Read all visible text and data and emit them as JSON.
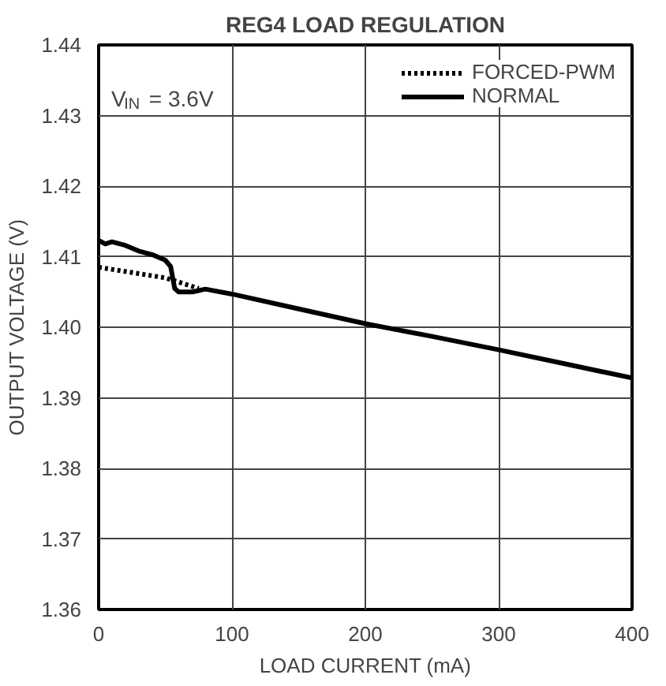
{
  "chart_data": {
    "type": "line",
    "title": "REG4 LOAD REGULATION",
    "xlabel": "LOAD CURRENT (mA)",
    "ylabel": "OUTPUT VOLTAGE (V)",
    "xlim": [
      0,
      400
    ],
    "xticks": [
      0,
      100,
      200,
      300,
      400
    ],
    "ylim": [
      1.36,
      1.44
    ],
    "yticks": [
      {
        "value": 1.36,
        "label": "1.36"
      },
      {
        "value": 1.37,
        "label": "1.37"
      },
      {
        "value": 1.38,
        "label": "1.38"
      },
      {
        "value": 1.39,
        "label": "1.39"
      },
      {
        "value": 1.4,
        "label": "1.40"
      },
      {
        "value": 1.41,
        "label": "1.41"
      },
      {
        "value": 1.42,
        "label": "1.42"
      },
      {
        "value": 1.43,
        "label": "1.43"
      },
      {
        "value": 1.44,
        "label": "1.44"
      }
    ],
    "grid": true,
    "legend": "top right",
    "annotations": [
      "V$_{IN}$ = 3.6V"
    ],
    "series": [
      {
        "name": "FORCED-PWM",
        "color": "#000000",
        "line_style": "dotted",
        "x": [
          0,
          10,
          20,
          30,
          40,
          50,
          60,
          70,
          75
        ],
        "values": [
          1.4085,
          1.4082,
          1.4079,
          1.4076,
          1.4073,
          1.407,
          1.4064,
          1.4058,
          1.4055
        ]
      },
      {
        "name": "NORMAL",
        "color": "#000000",
        "line_style": "solid",
        "x": [
          0,
          5,
          10,
          20,
          30,
          40,
          50,
          54,
          57,
          60,
          70,
          80,
          100,
          150,
          200,
          250,
          300,
          350,
          400
        ],
        "values": [
          1.4123,
          1.4118,
          1.4121,
          1.4116,
          1.4108,
          1.4103,
          1.4095,
          1.4086,
          1.4055,
          1.405,
          1.405,
          1.4054,
          1.4047,
          1.4026,
          1.4005,
          1.3987,
          1.3968,
          1.3948,
          1.3928
        ]
      }
    ]
  }
}
